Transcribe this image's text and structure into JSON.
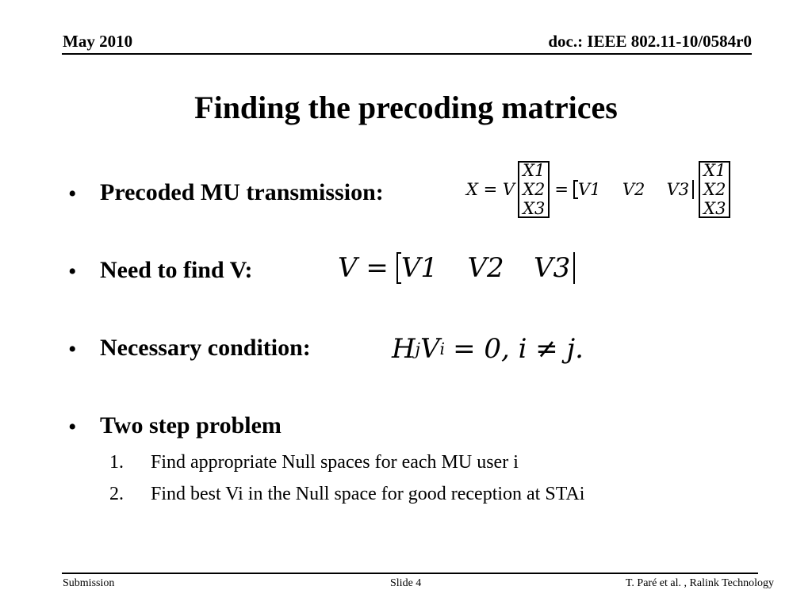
{
  "header": {
    "date": "May 2010",
    "doc": "doc.: IEEE 802.11-10/0584r0"
  },
  "title": "Finding the precoding matrices",
  "bullets": [
    {
      "text": "Precoded MU transmission:",
      "equation": {
        "lhs": "X = V",
        "col1": [
          "X1",
          "X2",
          "X3"
        ],
        "mid": "=",
        "row": [
          "V1",
          "V2",
          "V3"
        ],
        "col2": [
          "X1",
          "X2",
          "X3"
        ]
      }
    },
    {
      "text": "Need to find V:",
      "equation": {
        "lhs": "V =",
        "row": [
          "V1",
          "V2",
          "V3"
        ]
      }
    },
    {
      "text": "Necessary condition:",
      "equation": {
        "h": "H",
        "hsub": "j",
        "v": "V",
        "vsub": "i",
        "rest": "= 0, i ≠ j."
      }
    },
    {
      "text": "Two step problem",
      "items": [
        {
          "marker": "1.",
          "text": "Find appropriate Null spaces for each MU user i"
        },
        {
          "marker": "2.",
          "text": "Find best Vi in the Null space for good reception at STAi"
        }
      ]
    }
  ],
  "footer": {
    "left": "Submission",
    "center": "Slide 4",
    "right": "T. Paré et al. , Ralink Technology"
  }
}
